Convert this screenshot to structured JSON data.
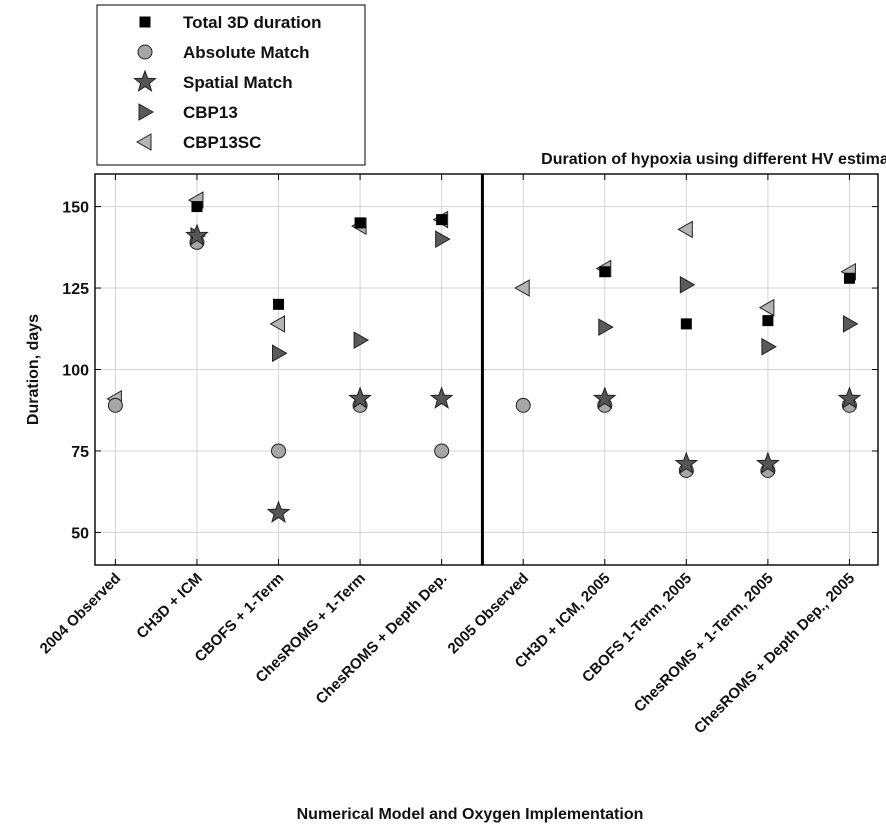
{
  "chart_data": {
    "type": "scatter",
    "title": "Duration of hypoxia using different HV estimates",
    "xlabel": "Numerical Model and Oxygen Implementation",
    "ylabel": "Duration, days",
    "categories": [
      "2004 Observed",
      "CH3D + ICM",
      "CBOFS + 1-Term",
      "ChesROMS + 1-Term",
      "ChesROMS + Depth Dep.",
      "2005 Observed",
      "CH3D + ICM, 2005",
      "CBOFS 1-Term, 2005",
      "ChesROMS + 1-Term, 2005",
      "ChesROMS + Depth Dep., 2005"
    ],
    "ylim": [
      40,
      160
    ],
    "yticks": [
      "50",
      "75",
      "100",
      "125",
      "150"
    ],
    "grid": true,
    "divider_after_category": 4,
    "legend_position": "top-left, outside plot",
    "series": [
      {
        "name": "Total 3D duration",
        "marker": "square",
        "color": "#000000",
        "values": [
          null,
          150,
          120,
          145,
          146,
          null,
          130,
          114,
          115,
          128
        ]
      },
      {
        "name": "Absolute Match",
        "marker": "circle",
        "color": "#a6a6a6",
        "values": [
          89,
          139,
          75,
          89,
          75,
          89,
          89,
          69,
          69,
          89
        ]
      },
      {
        "name": "Spatial Match",
        "marker": "star",
        "color": "#555555",
        "values": [
          null,
          141,
          56,
          91,
          91,
          null,
          91,
          71,
          71,
          91
        ]
      },
      {
        "name": "CBP13",
        "marker": "triangle-right",
        "color": "#5a5a5a",
        "values": [
          null,
          141,
          105,
          109,
          140,
          null,
          113,
          126,
          107,
          114
        ]
      },
      {
        "name": "CBP13SC",
        "marker": "triangle-left",
        "color": "#b4b4b4",
        "values": [
          91,
          152,
          114,
          144,
          146,
          125,
          131,
          143,
          119,
          130
        ]
      }
    ]
  }
}
